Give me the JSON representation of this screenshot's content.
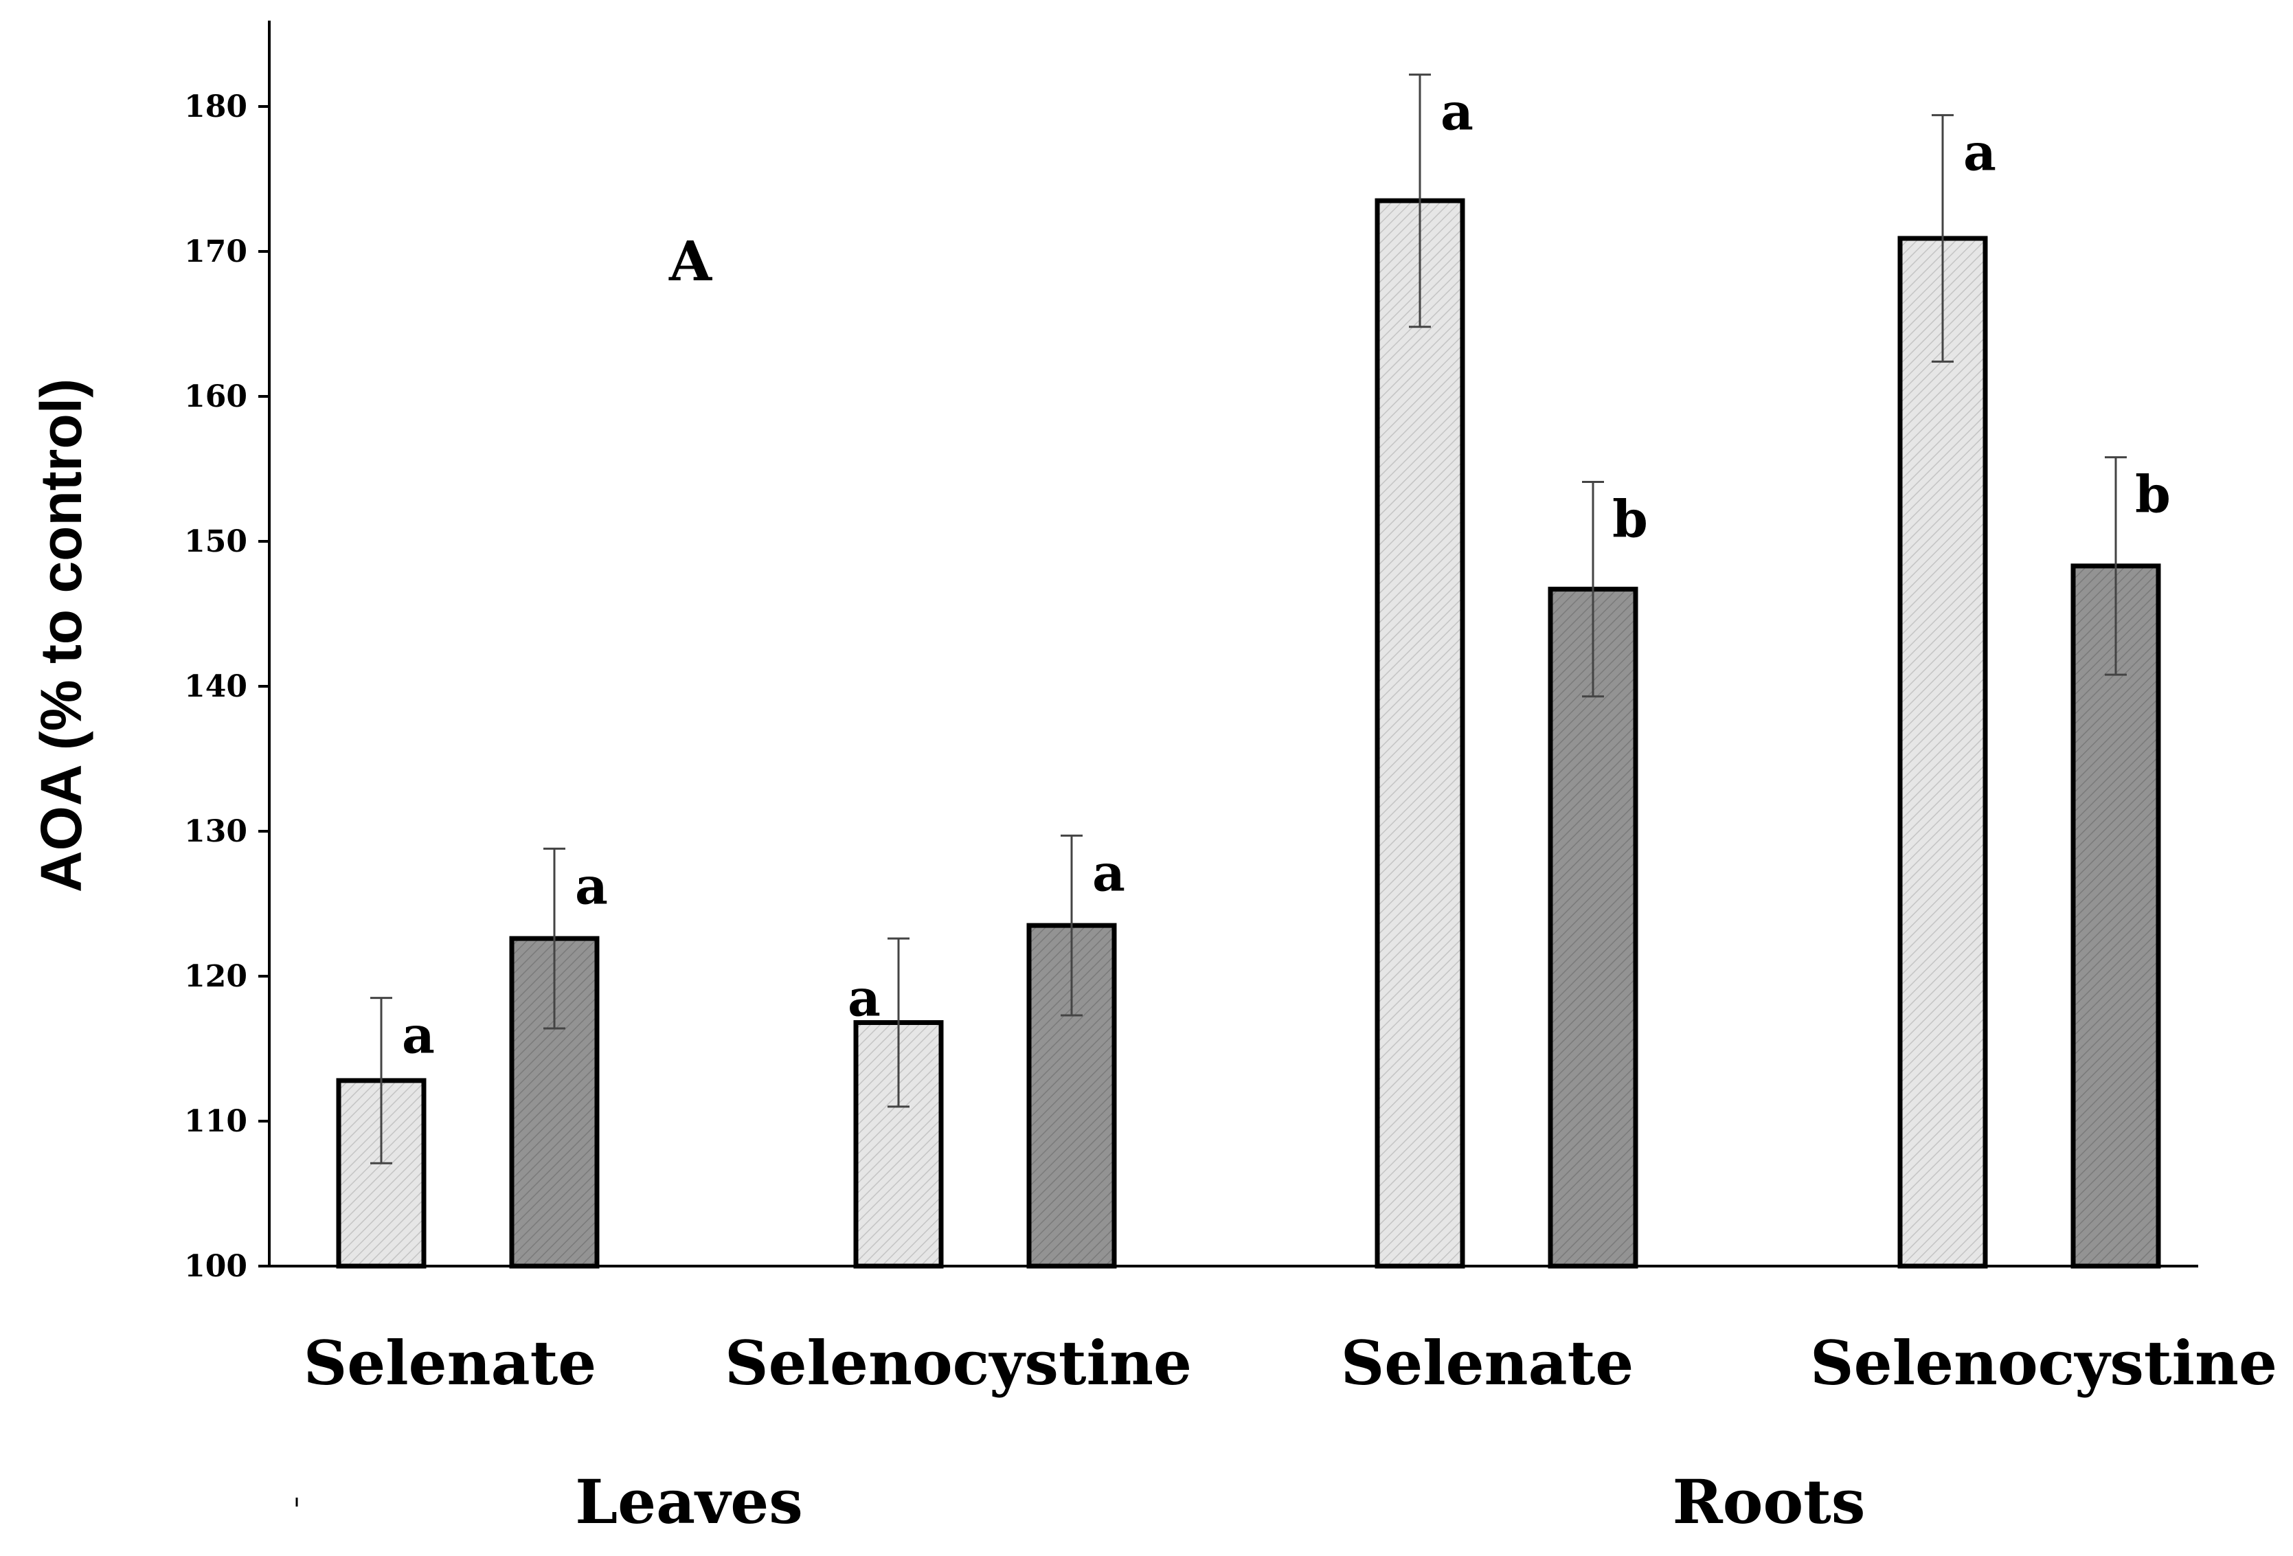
{
  "chart_data": {
    "type": "bar",
    "panel_label": "A",
    "ylabel": "AOA (% to control)",
    "xlabel": "",
    "ylim": [
      100,
      185
    ],
    "yticks": [
      "100",
      "110",
      "120",
      "130",
      "140",
      "150",
      "160",
      "170",
      "180"
    ],
    "categories": [
      "Selenate",
      "Selenocystine",
      "Selenate",
      "Selenocystine"
    ],
    "groups": [
      {
        "label": "Leaves",
        "categories": [
          0,
          1
        ]
      },
      {
        "label": "Roots",
        "categories": [
          2,
          3
        ]
      }
    ],
    "series": [
      {
        "name": "light",
        "color": "#e4e4e4",
        "values": [
          112.8,
          116.8,
          173.5,
          170.9
        ],
        "errors": [
          5.7,
          5.8,
          8.7,
          8.5
        ],
        "sig": [
          "a",
          "a",
          "a",
          "a"
        ]
      },
      {
        "name": "dark",
        "color": "#8c8c8c",
        "values": [
          122.6,
          123.5,
          146.7,
          148.3
        ],
        "errors": [
          6.2,
          6.2,
          7.4,
          7.5
        ],
        "sig": [
          "a",
          "a",
          "b",
          "b"
        ]
      }
    ]
  }
}
